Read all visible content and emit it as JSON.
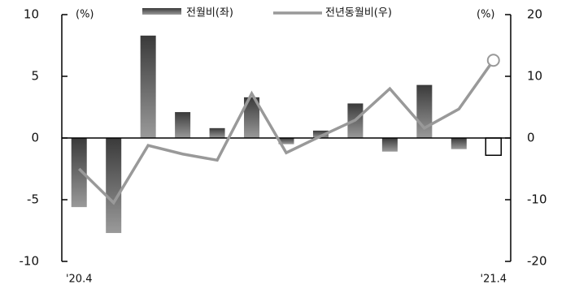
{
  "chart_data": {
    "type": "bar-line",
    "categories": [
      "'20.4",
      null,
      null,
      null,
      null,
      null,
      null,
      null,
      null,
      null,
      null,
      null,
      "'21.4"
    ],
    "series": [
      {
        "name": "전월비(좌)",
        "color": "#555555",
        "values": [
          -5.6,
          -7.7,
          8.3,
          2.1,
          0.8,
          3.3,
          -0.5,
          0.6,
          2.8,
          -1.1,
          4.3,
          -0.9,
          -1.4
        ]
      },
      {
        "name": "전년동월비(우)",
        "color": "#999999",
        "axis": "y2",
        "values": [
          -5.0,
          -10.5,
          -1.2,
          -2.6,
          -3.6,
          7.2,
          -2.4,
          0.3,
          2.9,
          8.0,
          1.6,
          4.7,
          12.6
        ]
      }
    ],
    "hollow_last": true,
    "y_unit": "(%)",
    "y2_unit": "(%)",
    "ylim": [
      -10,
      10
    ],
    "yticks": [
      -10,
      -5,
      0,
      5,
      10
    ],
    "y2lim": [
      -20,
      20
    ],
    "y2ticks": [
      -20,
      -10,
      0,
      10,
      20
    ]
  }
}
